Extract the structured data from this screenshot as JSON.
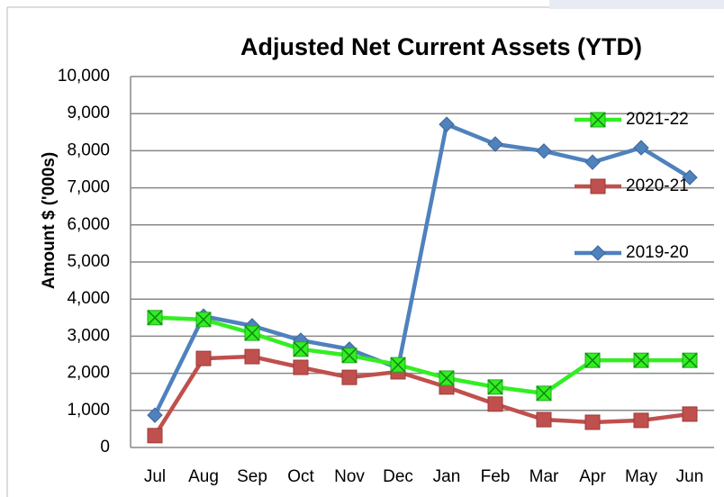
{
  "chart_data": {
    "type": "line",
    "title": "Adjusted Net Current Assets (YTD)",
    "y_label": "Amount $ ('000s)",
    "categories": [
      "Jul",
      "Aug",
      "Sep",
      "Oct",
      "Nov",
      "Dec",
      "Jan",
      "Feb",
      "Mar",
      "Apr",
      "May",
      "Jun"
    ],
    "series": [
      {
        "name": "2021-22",
        "color": "#33ee22",
        "marker": "square-x",
        "values": [
          3500,
          3450,
          3080,
          2650,
          2480,
          2230,
          1870,
          1630,
          1460,
          2350,
          2350,
          2350
        ]
      },
      {
        "name": "2020-21",
        "color": "#c0504d",
        "marker": "square",
        "values": [
          320,
          2400,
          2450,
          2160,
          1890,
          2040,
          1630,
          1170,
          750,
          680,
          730,
          900
        ]
      },
      {
        "name": "2019-20",
        "color": "#4f81bd",
        "marker": "diamond",
        "values": [
          870,
          3540,
          3280,
          2890,
          2650,
          2140,
          8710,
          8180,
          7990,
          7690,
          8080,
          7280
        ]
      }
    ],
    "ylim": [
      0,
      10000
    ],
    "yticks": [
      0,
      {
        "value": 1000,
        "label": "1,000"
      },
      {
        "value": 2000,
        "label": "2,000"
      },
      {
        "value": 3000,
        "label": "3,000"
      },
      {
        "value": 4000,
        "label": "4,000"
      },
      {
        "value": 5000,
        "label": "5,000"
      },
      {
        "value": 6000,
        "label": "6,000"
      },
      {
        "value": 7000,
        "label": "7,000"
      },
      {
        "value": 8000,
        "label": "8,000"
      },
      {
        "value": 9000,
        "label": "9,000"
      },
      {
        "value": 10000,
        "label": "10,000"
      }
    ],
    "grid": true,
    "legend": "right"
  }
}
